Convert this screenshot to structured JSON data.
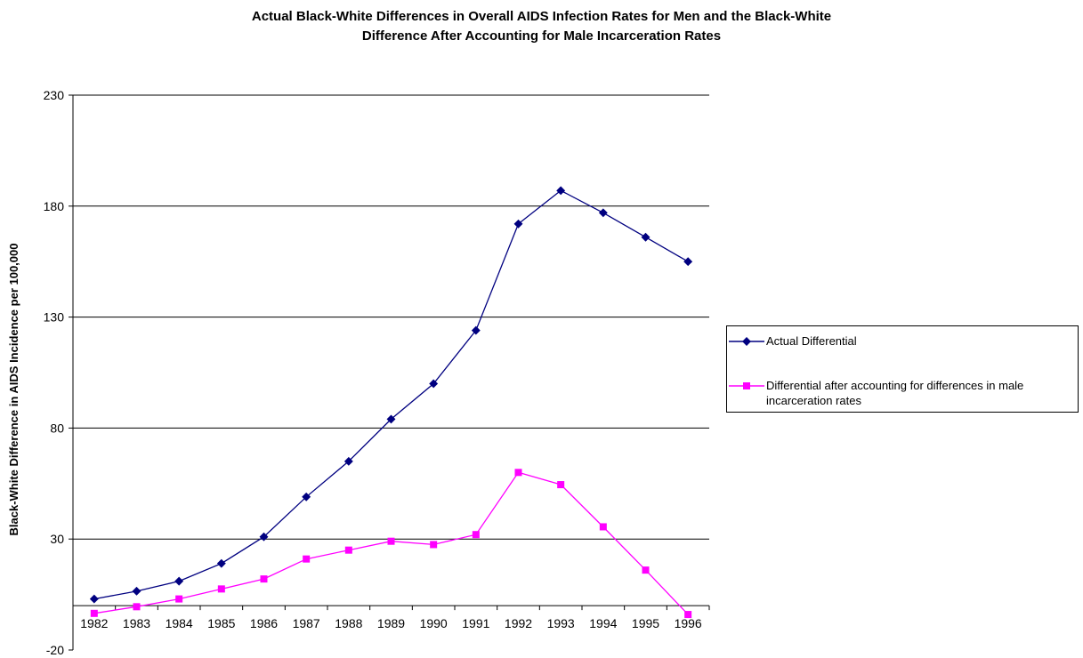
{
  "chart_data": {
    "type": "line",
    "title": "Actual Black-White Differences in Overall AIDS Infection Rates for Men and the Black-White Difference After Accounting for Male Incarceration Rates",
    "title_lines": [
      "Actual Black-White Differences in Overall AIDS Infection Rates for Men and the Black-White",
      "Difference After Accounting for Male Incarceration Rates"
    ],
    "xlabel": "",
    "ylabel": "Black-White Difference in AIDS Incidence per 100,000",
    "ylim": [
      -20,
      230
    ],
    "yticks": [
      -20,
      30,
      80,
      130,
      180,
      230
    ],
    "grid": "horizontal",
    "legend": "right",
    "categories": [
      "1982",
      "1983",
      "1984",
      "1985",
      "1986",
      "1987",
      "1988",
      "1989",
      "1990",
      "1991",
      "1992",
      "1993",
      "1994",
      "1995",
      "1996"
    ],
    "series": [
      {
        "name": "Actual Differential",
        "color": "#000080",
        "marker": "diamond",
        "values": [
          3,
          6.5,
          11,
          19,
          31,
          49,
          65,
          84,
          100,
          124,
          172,
          187,
          177,
          166,
          155
        ]
      },
      {
        "name": "Differential after accounting for differences in male incarceration rates",
        "color": "#ff00ff",
        "marker": "square",
        "values": [
          -3.5,
          -0.5,
          3,
          7.5,
          12,
          21,
          25,
          29,
          27.5,
          32,
          60,
          54.5,
          35.5,
          16,
          -4
        ]
      }
    ]
  }
}
